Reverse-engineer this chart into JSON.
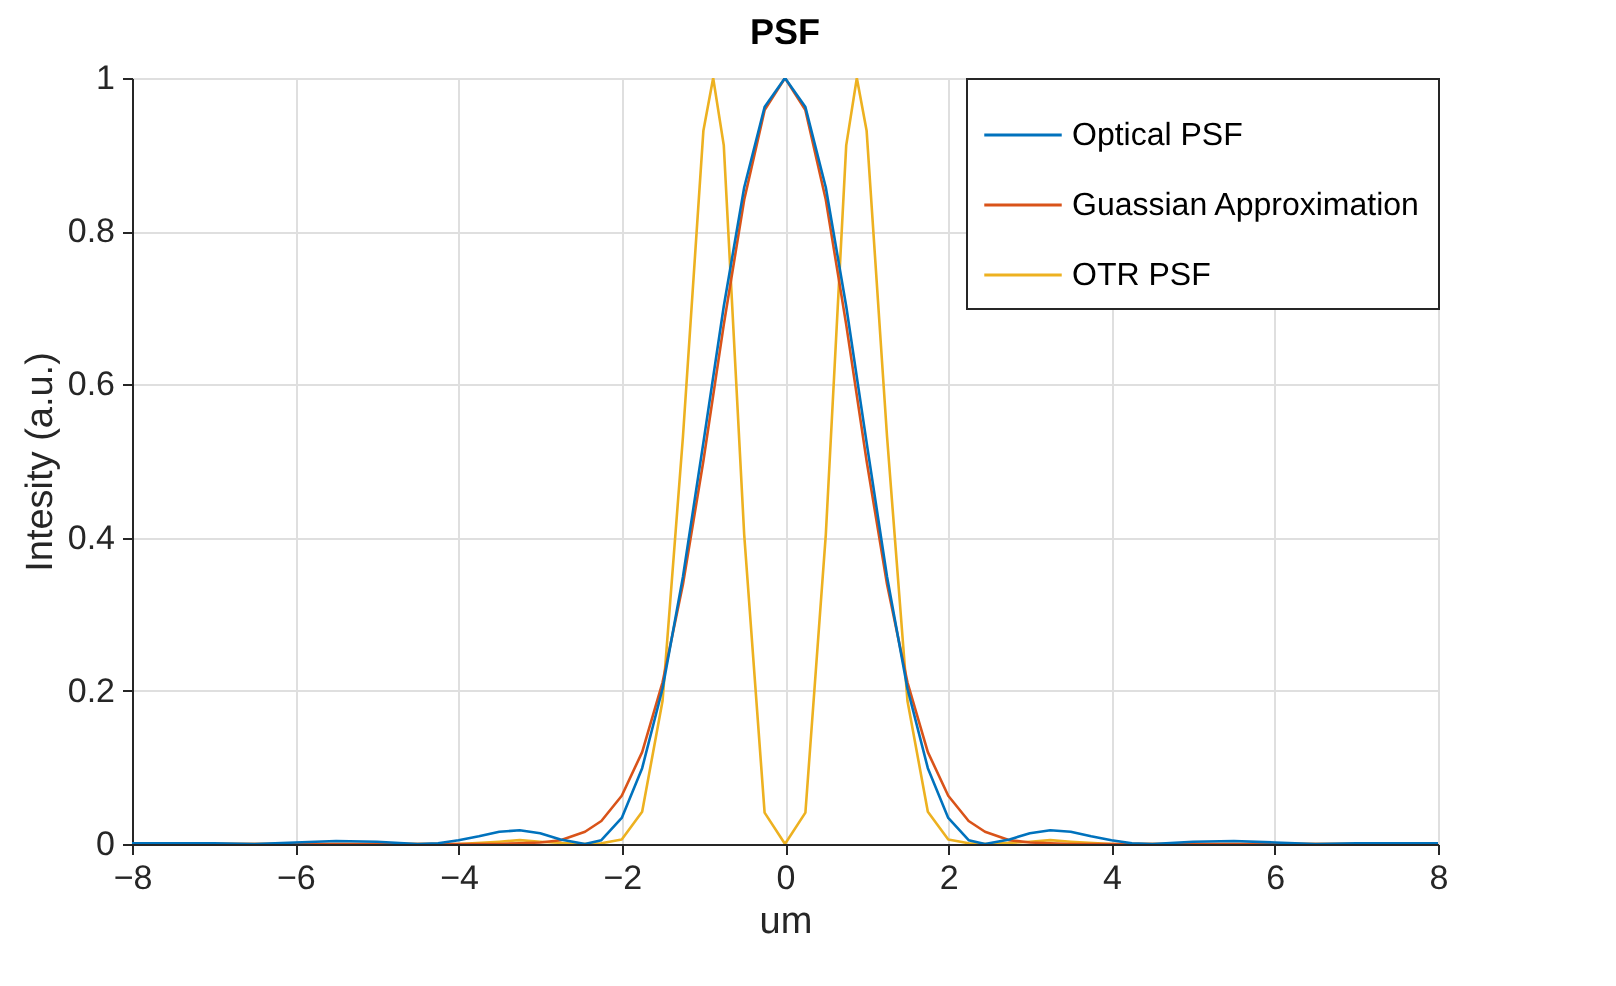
{
  "chart_data": {
    "type": "line",
    "title": "PSF",
    "xlabel": "um",
    "ylabel": "Intesity (a.u.)",
    "xlim": [
      -8,
      8
    ],
    "xticks": [
      -8,
      -6,
      -4,
      -2,
      0,
      2,
      4,
      6,
      8
    ],
    "ylim": [
      0,
      1
    ],
    "yticks": [
      0,
      0.2,
      0.4,
      0.6,
      0.8,
      1
    ],
    "grid": true,
    "legend": "top right",
    "marker": "none",
    "line_style": "solid",
    "series": [
      {
        "name": "Optical PSF",
        "color": "#0072bd",
        "x": [
          -8,
          -7.5,
          -7,
          -6.5,
          -6,
          -5.5,
          -5,
          -4.5,
          -4.25,
          -4,
          -3.75,
          -3.5,
          -3.25,
          -3,
          -2.75,
          -2.45,
          -2.25,
          -2,
          -1.75,
          -1.5,
          -1.25,
          -1,
          -0.75,
          -0.5,
          -0.25,
          0,
          0.25,
          0.5,
          0.75,
          1,
          1.25,
          1.5,
          1.75,
          2,
          2.25,
          2.45,
          2.75,
          3,
          3.25,
          3.5,
          3.75,
          4,
          4.25,
          4.5,
          5,
          5.5,
          6,
          6.5,
          7,
          7.5,
          8
        ],
        "values": [
          0.001,
          0.001,
          0.001,
          0,
          0.002,
          0.004,
          0.003,
          0,
          0.001,
          0.005,
          0.01,
          0.016,
          0.018,
          0.014,
          0.006,
          0,
          0.005,
          0.034,
          0.099,
          0.203,
          0.349,
          0.524,
          0.702,
          0.857,
          0.962,
          1,
          0.962,
          0.857,
          0.702,
          0.524,
          0.349,
          0.203,
          0.099,
          0.034,
          0.005,
          0,
          0.006,
          0.014,
          0.018,
          0.016,
          0.01,
          0.005,
          0.001,
          0,
          0.003,
          0.004,
          0.002,
          0,
          0.001,
          0.001,
          0.001
        ]
      },
      {
        "name": "Guassian Approximation",
        "color": "#d95319",
        "x": [
          -8,
          -4,
          -3.5,
          -3.25,
          -3,
          -2.75,
          -2.45,
          -2.25,
          -2,
          -1.75,
          -1.5,
          -1.25,
          -1,
          -0.75,
          -0.5,
          -0.25,
          0,
          0.25,
          0.5,
          0.75,
          1,
          1.25,
          1.5,
          1.75,
          2,
          2.25,
          2.45,
          2.75,
          3,
          3.25,
          3.5,
          4,
          8
        ],
        "values": [
          0,
          0,
          0,
          0.001,
          0.002,
          0.005,
          0.016,
          0.03,
          0.063,
          0.12,
          0.211,
          0.339,
          0.5,
          0.678,
          0.841,
          0.958,
          1,
          0.958,
          0.841,
          0.678,
          0.5,
          0.339,
          0.211,
          0.12,
          0.063,
          0.03,
          0.016,
          0.005,
          0.002,
          0.001,
          0,
          0,
          0
        ]
      },
      {
        "name": "OTR PSF",
        "color": "#edb120",
        "x": [
          -8,
          -4,
          -3.5,
          -3.25,
          -3,
          -2.5,
          -2.25,
          -2,
          -1.75,
          -1.5,
          -1.25,
          -1,
          -0.88,
          -0.75,
          -0.5,
          -0.25,
          0,
          0.25,
          0.5,
          0.75,
          0.88,
          1,
          1.25,
          1.5,
          1.75,
          2,
          2.25,
          2.5,
          3,
          3.25,
          3.5,
          4,
          8
        ],
        "values": [
          0,
          0,
          0.003,
          0.005,
          0.003,
          0,
          0.001,
          0.006,
          0.042,
          0.187,
          0.532,
          0.931,
          1,
          0.912,
          0.404,
          0.041,
          0,
          0.041,
          0.404,
          0.912,
          1,
          0.931,
          0.532,
          0.187,
          0.042,
          0.006,
          0.001,
          0,
          0.003,
          0.005,
          0.003,
          0,
          0
        ]
      }
    ]
  }
}
